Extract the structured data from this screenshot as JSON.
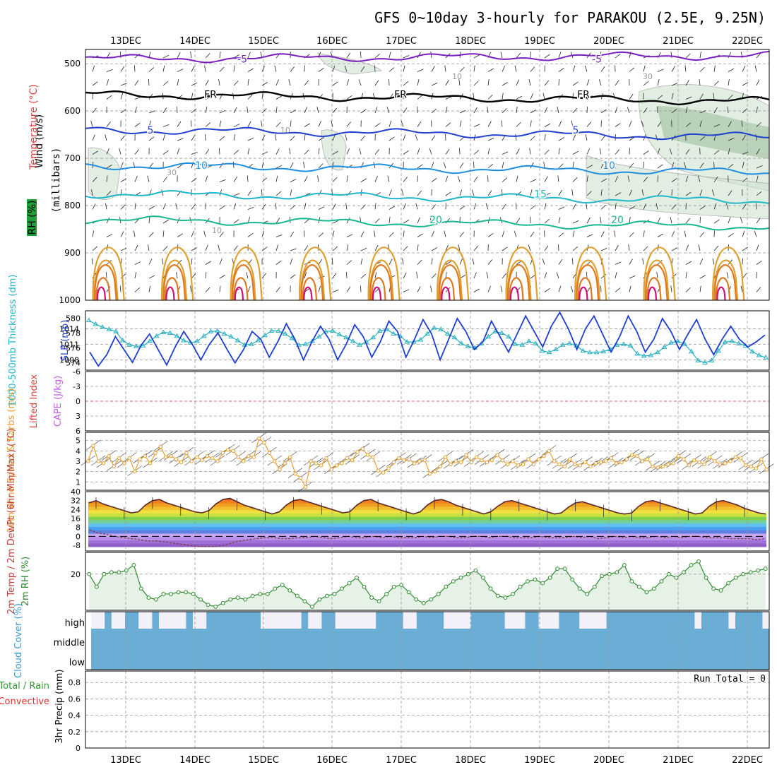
{
  "title": "GFS 0~10day 3-hourly for PARAKOU (2.5E, 9.25N)",
  "colors": {
    "purple": "#7a1fbf",
    "black": "#000000",
    "blue": "#1f3fcf",
    "sky": "#1e8fe0",
    "cyan": "#20b8c8",
    "green": "#18b890",
    "orange_light": "#e0a030",
    "orange": "#e07820",
    "magenta": "#d0107a",
    "sea": "#2ab0c0",
    "wind10": "#e8a030",
    "rhline": "#2e8b2e",
    "cloud": "#6aaed6",
    "dashed_red": "#e03030"
  },
  "chart_data": {
    "type": "meteogram",
    "date_labels": [
      "13DEC",
      "14DEC",
      "15DEC",
      "16DEC",
      "17DEC",
      "18DEC",
      "19DEC",
      "20DEC",
      "21DEC",
      "22DEC"
    ],
    "panels": {
      "upper_air": {
        "ylabels": [
          "Wind (m/s)",
          "Temperature (°C)",
          "RH (%)",
          "(millibars)"
        ],
        "pressure_ticks": [
          "500",
          "600",
          "700",
          "800",
          "900",
          "1000"
        ],
        "pressure_values": [
          500,
          600,
          700,
          800,
          900,
          1000
        ],
        "ylim": [
          1000,
          470
        ],
        "contours": [
          {
            "name": "-5",
            "level_mb": 490,
            "color": "purple",
            "labels": [
              "-5",
              "-5"
            ]
          },
          {
            "name": "FR",
            "level_mb": 565,
            "color": "black",
            "labels": [
              "FR",
              "FR",
              "FR"
            ]
          },
          {
            "name": "5",
            "level_mb": 640,
            "color": "blue",
            "labels": [
              "5",
              "5"
            ]
          },
          {
            "name": "10",
            "level_mb": 715,
            "color": "sky",
            "labels": [
              "10",
              "10"
            ]
          },
          {
            "name": "15",
            "level_mb": 775,
            "color": "cyan",
            "labels": [
              "15"
            ]
          },
          {
            "name": "20",
            "level_mb": 830,
            "color": "green",
            "labels": [
              "20",
              "20"
            ]
          }
        ],
        "rh_labels": [
          "10",
          "10",
          "30",
          "10",
          "30"
        ]
      },
      "thickness_slp": {
        "left_label": "1000-500mb Thickness (dm)",
        "right_label": "SLP (mb)",
        "left_ticks": [
          "580",
          "578",
          "576",
          "574"
        ],
        "left_range": [
          573,
          581
        ],
        "right_ticks": [
          "1014",
          "1011",
          "1008"
        ],
        "right_range": [
          1006,
          1017.5
        ],
        "thickness_dm": [
          579.7,
          579.2,
          578.8,
          578.5,
          578.2,
          577.0,
          576.4,
          576.2,
          576.3,
          576.9,
          577.6,
          578.1,
          578.0,
          577.6,
          577.0,
          576.7,
          576.9,
          577.6,
          578.2,
          578.3,
          577.9,
          577.5,
          577.0,
          576.4,
          576.5,
          577.0,
          577.7,
          578.3,
          578.3,
          577.9,
          577.3,
          576.4,
          576.5,
          576.9,
          577.5,
          578.2,
          578.3,
          577.8,
          577.4,
          576.9,
          576.4,
          576.8,
          577.4,
          578.3,
          578.5,
          577.9,
          577.6,
          576.8,
          576.8,
          577.1,
          577.9,
          578.7,
          578.5,
          577.9,
          577.4,
          576.6,
          576.2,
          576.0,
          576.6,
          577.5,
          578.2,
          578.0,
          577.5,
          576.5,
          576.4,
          576.9,
          576.6,
          575.6,
          575.4,
          575.8,
          576.4,
          576.6,
          576.3,
          575.6,
          575.4,
          575.4,
          575.5,
          575.8,
          576.4,
          576.5,
          576.3,
          575.2,
          574.9,
          575.0,
          575.4,
          576.1,
          576.7,
          576.9,
          576.5,
          575.5,
          574.3,
          574.0,
          574.3,
          575.6,
          576.8,
          576.9,
          576.6,
          576.3,
          575.5,
          575.0,
          574.7
        ],
        "slp_mb": [
          1009.5,
          1006.8,
          1009.0,
          1012.5,
          1010.0,
          1007.5,
          1010.8,
          1013.0,
          1010.0,
          1007.0,
          1010.5,
          1013.5,
          1011.0,
          1008.0,
          1011.0,
          1013.2,
          1010.2,
          1007.4,
          1010.0,
          1013.5,
          1012.0,
          1008.5,
          1011.5,
          1015.0,
          1012.0,
          1008.0,
          1011.5,
          1014.5,
          1012.0,
          1008.0,
          1011.0,
          1014.8,
          1012.5,
          1008.5,
          1011.5,
          1015.5,
          1013.5,
          1008.5,
          1012.0,
          1015.8,
          1013.0,
          1008.0,
          1012.0,
          1016.0,
          1013.5,
          1010.0,
          1011.5,
          1015.5,
          1012.5,
          1009.5,
          1013.0,
          1016.5,
          1013.5,
          1010.5,
          1014.5,
          1017.2,
          1014.0,
          1010.0,
          1014.0,
          1016.5,
          1013.0,
          1009.5,
          1012.5,
          1016.5,
          1013.5,
          1009.5,
          1012.0,
          1016.0,
          1013.5,
          1010.0,
          1013.0,
          1015.8,
          1012.0,
          1009.0,
          1012.0,
          1014.5,
          1012.0,
          1010.5,
          1011.5,
          1012.8
        ],
        "thickness_color": "sea",
        "slp_color": "blue"
      },
      "cape_li": {
        "left_label": "Lifted Index",
        "right_label": "CAPE (J/kg)",
        "ticks": [
          "-6",
          "-3",
          "0",
          "3",
          "6"
        ],
        "tick_values": [
          -6,
          -3,
          0,
          3,
          6
        ],
        "range": [
          -6,
          6
        ]
      },
      "wind10": {
        "ylabel": "10m Wind Speed & Barbs (m/s)",
        "ticks": [
          "1",
          "2",
          "3",
          "4",
          "5"
        ],
        "tick_values": [
          1,
          2,
          3,
          4,
          5
        ],
        "range": [
          0.2,
          5.8
        ],
        "speed_ms": [
          3.0,
          4.5,
          3.0,
          2.8,
          3.5,
          2.5,
          3.3,
          2.8,
          3.3,
          2.0,
          3.2,
          3.5,
          2.8,
          3.8,
          4.4,
          3.4,
          3.5,
          3.2,
          2.9,
          3.8,
          3.0,
          3.4,
          3.1,
          3.5,
          3.3,
          3.0,
          3.8,
          4.1,
          4.0,
          3.4,
          3.0,
          3.5,
          3.4,
          5.2,
          4.8,
          3.8,
          3.0,
          2.2,
          2.8,
          3.4,
          1.8,
          1.4,
          0.5,
          3.0,
          2.8,
          2.6,
          3.3,
          2.2,
          2.6,
          2.8,
          3.3,
          3.1,
          3.9,
          4.2,
          3.6,
          3.4,
          2.1,
          1.9,
          2.3,
          2.9,
          3.3,
          3.1,
          3.2,
          2.8,
          3.0,
          3.1,
          1.8,
          2.0,
          2.5,
          3.4,
          2.7,
          3.0,
          2.9,
          3.6,
          2.9,
          3.4,
          3.1,
          2.9,
          3.1,
          3.6,
          3.1,
          2.7,
          3.0,
          2.6,
          2.7,
          3.2,
          2.7,
          3.2,
          3.5,
          4.0,
          3.0,
          2.7,
          2.5,
          3.2,
          2.7,
          2.6,
          2.9,
          2.5,
          2.8,
          2.9,
          3.0,
          3.3,
          2.8,
          2.9,
          3.2,
          3.6,
          3.5,
          3.0,
          3.2,
          2.5,
          2.4,
          2.5,
          2.7,
          2.8,
          3.5,
          3.2,
          2.6,
          3.1,
          2.9,
          2.7,
          3.4,
          3.0,
          2.7,
          2.8,
          3.0,
          3.4,
          3.3,
          2.6,
          2.5,
          2.3,
          3.2,
          2.2
        ],
        "color": "wind10"
      },
      "temp2m": {
        "ylabel": "2m Temp / 2m DewPt (6hr Min/Max) (°C)",
        "ticks": [
          "40",
          "32",
          "24",
          "16",
          "8",
          "0",
          "-8"
        ],
        "tick_values": [
          40,
          32,
          24,
          16,
          8,
          0,
          -8
        ],
        "range": [
          -13,
          40
        ],
        "temp_c": [
          30,
          32,
          29,
          27,
          25,
          23,
          21,
          22,
          28,
          32,
          33,
          30,
          28,
          26,
          24,
          22,
          21,
          23,
          29,
          33,
          34,
          31,
          28,
          26,
          24,
          22,
          20,
          22,
          28,
          32,
          33,
          31,
          29,
          27,
          25,
          23,
          21,
          22,
          28,
          32,
          33,
          30,
          28,
          26,
          24,
          22,
          20,
          22,
          28,
          32,
          33,
          31,
          28,
          26,
          24,
          22,
          20,
          22,
          27,
          31,
          32,
          30,
          28,
          26,
          24,
          22,
          20,
          21,
          26,
          30,
          31,
          29,
          27,
          25,
          23,
          21,
          20,
          21,
          27,
          31,
          32,
          30,
          28,
          26,
          24,
          22,
          20,
          21,
          27,
          31,
          32,
          30,
          28,
          25,
          23,
          21,
          20
        ],
        "dewpt_c": [
          6,
          3,
          2,
          0,
          -1,
          -2,
          -3,
          -4,
          -4,
          -5,
          -6,
          -7,
          -8,
          -9,
          -9,
          -9,
          -8,
          -6,
          -4,
          -3,
          -2,
          -1,
          -1,
          -2,
          -2,
          -1,
          -1,
          0,
          -1,
          -2,
          -1,
          0,
          -1,
          -1,
          0,
          -1,
          0,
          -1,
          -1,
          -1,
          0,
          -1,
          0,
          0,
          -1,
          -1,
          0,
          0,
          -1,
          0,
          0,
          -1,
          -1,
          -1,
          0,
          -1,
          -1,
          -1,
          0,
          -1,
          0,
          -2,
          -1,
          0,
          -1,
          0,
          -1,
          -1,
          0,
          -1,
          0,
          -1,
          0,
          0,
          -1,
          -1,
          -1,
          -2,
          -2,
          -2,
          -3,
          -2
        ],
        "color_bands": [
          "#9060c8",
          "#a070d8",
          "#b890e8",
          "#c8a8f0",
          "#6080e0",
          "#4aa0f0",
          "#60c0f0",
          "#70d0a0",
          "#80d050",
          "#c8e040",
          "#f0e040",
          "#f0c030",
          "#f0a020",
          "#f08020",
          "#e85020",
          "#d83020"
        ]
      },
      "rh2m": {
        "ylabel": "2m RH (%)",
        "ticks": [
          "20"
        ],
        "tick_values": [
          20
        ],
        "range": [
          0,
          32
        ],
        "rh_pct": [
          20,
          13,
          20,
          21,
          21,
          22,
          25,
          12,
          7,
          6,
          9,
          9,
          10,
          10,
          9,
          6,
          3,
          2,
          4,
          6,
          7,
          6,
          8,
          9,
          9,
          12,
          14,
          11,
          8,
          5,
          2,
          6,
          8,
          9,
          12,
          15,
          18,
          13,
          7,
          5,
          9,
          13,
          14,
          10,
          6,
          4,
          6,
          9,
          13,
          16,
          18,
          20,
          22,
          18,
          12,
          8,
          7,
          9,
          13,
          16,
          17,
          15,
          18,
          23,
          23,
          17,
          12,
          9,
          13,
          19,
          20,
          21,
          25,
          16,
          13,
          10,
          12,
          16,
          20,
          18,
          21,
          25,
          27,
          18,
          12,
          11,
          15,
          18,
          20,
          21,
          22,
          23
        ]
      },
      "cloud": {
        "ylabel": "Cloud Cover (%)",
        "levels": [
          "high",
          "middle",
          "low"
        ],
        "high_gaps": [
          [
            0.0,
            0.02
          ],
          [
            0.03,
            0.05
          ],
          [
            0.07,
            0.09
          ],
          [
            0.1,
            0.14
          ],
          [
            0.15,
            0.17
          ],
          [
            0.25,
            0.31
          ],
          [
            0.32,
            0.34
          ],
          [
            0.36,
            0.42
          ],
          [
            0.46,
            0.48
          ],
          [
            0.52,
            0.56
          ],
          [
            0.61,
            0.64
          ],
          [
            0.66,
            0.69
          ],
          [
            0.72,
            0.76
          ],
          [
            0.89,
            0.9
          ],
          [
            0.94,
            0.95
          ],
          [
            0.99,
            1.0
          ]
        ]
      },
      "precip": {
        "ylabel": "3hr Precip (mm)",
        "side_labels": [
          "Total / Rain",
          "Convective"
        ],
        "ticks": [
          "0",
          "0.2",
          "0.4",
          "0.6",
          "0.8"
        ],
        "tick_values": [
          0,
          0.2,
          0.4,
          0.6,
          0.8
        ],
        "range": [
          0,
          0.94
        ],
        "run_total": "Run Total = 0"
      }
    }
  }
}
